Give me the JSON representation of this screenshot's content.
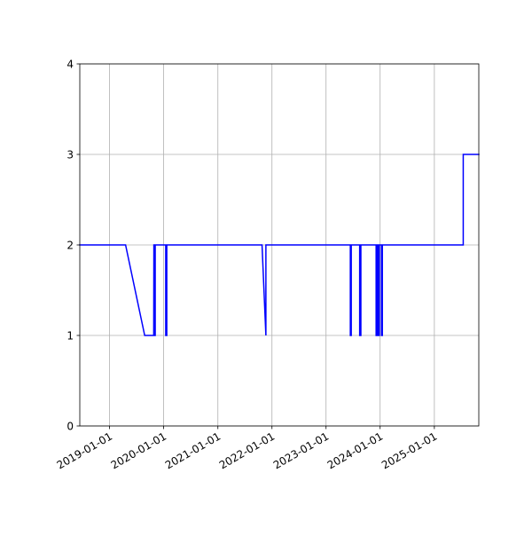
{
  "chart_data": {
    "type": "line",
    "title": "",
    "xlabel": "",
    "ylabel": "",
    "x_scale": "date",
    "xlim": [
      "2018-06-14",
      "2025-10-28"
    ],
    "ylim": [
      0,
      4
    ],
    "grid": true,
    "legend": "none",
    "x_ticks": [
      "2019-01-01",
      "2020-01-01",
      "2021-01-01",
      "2022-01-01",
      "2023-01-01",
      "2024-01-01",
      "2025-01-01"
    ],
    "y_ticks": [
      0,
      1,
      2,
      3,
      4
    ],
    "series": [
      {
        "color": "#0000ff",
        "points": [
          [
            "2018-06-14",
            2
          ],
          [
            "2019-04-19",
            2
          ],
          [
            "2019-08-26",
            1
          ],
          [
            "2019-10-26",
            1
          ],
          [
            "2019-10-27",
            2
          ],
          [
            "2019-11-01",
            2
          ],
          [
            "2019-11-01",
            1
          ],
          [
            "2019-11-05",
            1
          ],
          [
            "2019-11-05",
            2
          ],
          [
            "2020-01-15",
            2
          ],
          [
            "2020-01-15",
            1
          ],
          [
            "2020-01-22",
            1
          ],
          [
            "2020-01-22",
            2
          ],
          [
            "2021-10-26",
            2
          ],
          [
            "2021-11-21",
            1
          ],
          [
            "2021-11-21",
            2
          ],
          [
            "2023-06-14",
            2
          ],
          [
            "2023-06-14",
            1
          ],
          [
            "2023-06-20",
            1
          ],
          [
            "2023-06-20",
            2
          ],
          [
            "2023-08-16",
            2
          ],
          [
            "2023-08-16",
            1
          ],
          [
            "2023-08-24",
            1
          ],
          [
            "2023-08-24",
            2
          ],
          [
            "2023-12-05",
            2
          ],
          [
            "2023-12-05",
            1
          ],
          [
            "2023-12-12",
            1
          ],
          [
            "2023-12-12",
            2
          ],
          [
            "2023-12-19",
            2
          ],
          [
            "2023-12-19",
            1
          ],
          [
            "2023-12-26",
            1
          ],
          [
            "2023-12-26",
            2
          ],
          [
            "2024-01-10",
            2
          ],
          [
            "2024-01-10",
            1
          ],
          [
            "2024-01-16",
            1
          ],
          [
            "2024-01-16",
            2
          ],
          [
            "2025-07-15",
            2
          ],
          [
            "2025-07-15",
            3
          ],
          [
            "2025-10-28",
            3
          ]
        ]
      }
    ]
  }
}
